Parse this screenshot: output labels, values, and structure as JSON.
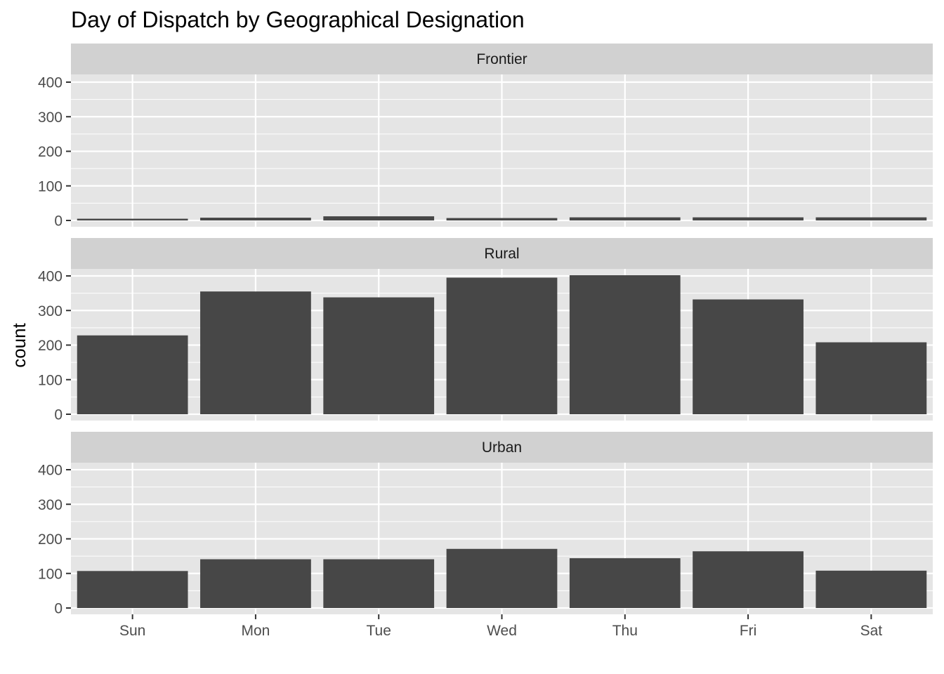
{
  "chart_data": {
    "type": "bar",
    "title": "Day of Dispatch by Geographical Designation",
    "xlabel": "",
    "ylabel": "count",
    "categories": [
      "Sun",
      "Mon",
      "Tue",
      "Wed",
      "Thu",
      "Fri",
      "Sat"
    ],
    "ylim": [
      0,
      500
    ],
    "yticks": [
      0,
      100,
      200,
      300,
      400
    ],
    "grid": true,
    "legend": "none",
    "bar_color": "#474747",
    "panel_background": "#e5e5e5",
    "strip_background": "#d1d1d1",
    "grid_color": "#ffffff",
    "facets": [
      {
        "name": "Frontier",
        "values": [
          5,
          8,
          12,
          7,
          9,
          9,
          9
        ]
      },
      {
        "name": "Rural",
        "values": [
          228,
          355,
          338,
          395,
          402,
          332,
          208
        ]
      },
      {
        "name": "Urban",
        "values": [
          107,
          141,
          141,
          171,
          144,
          164,
          108
        ]
      }
    ]
  }
}
